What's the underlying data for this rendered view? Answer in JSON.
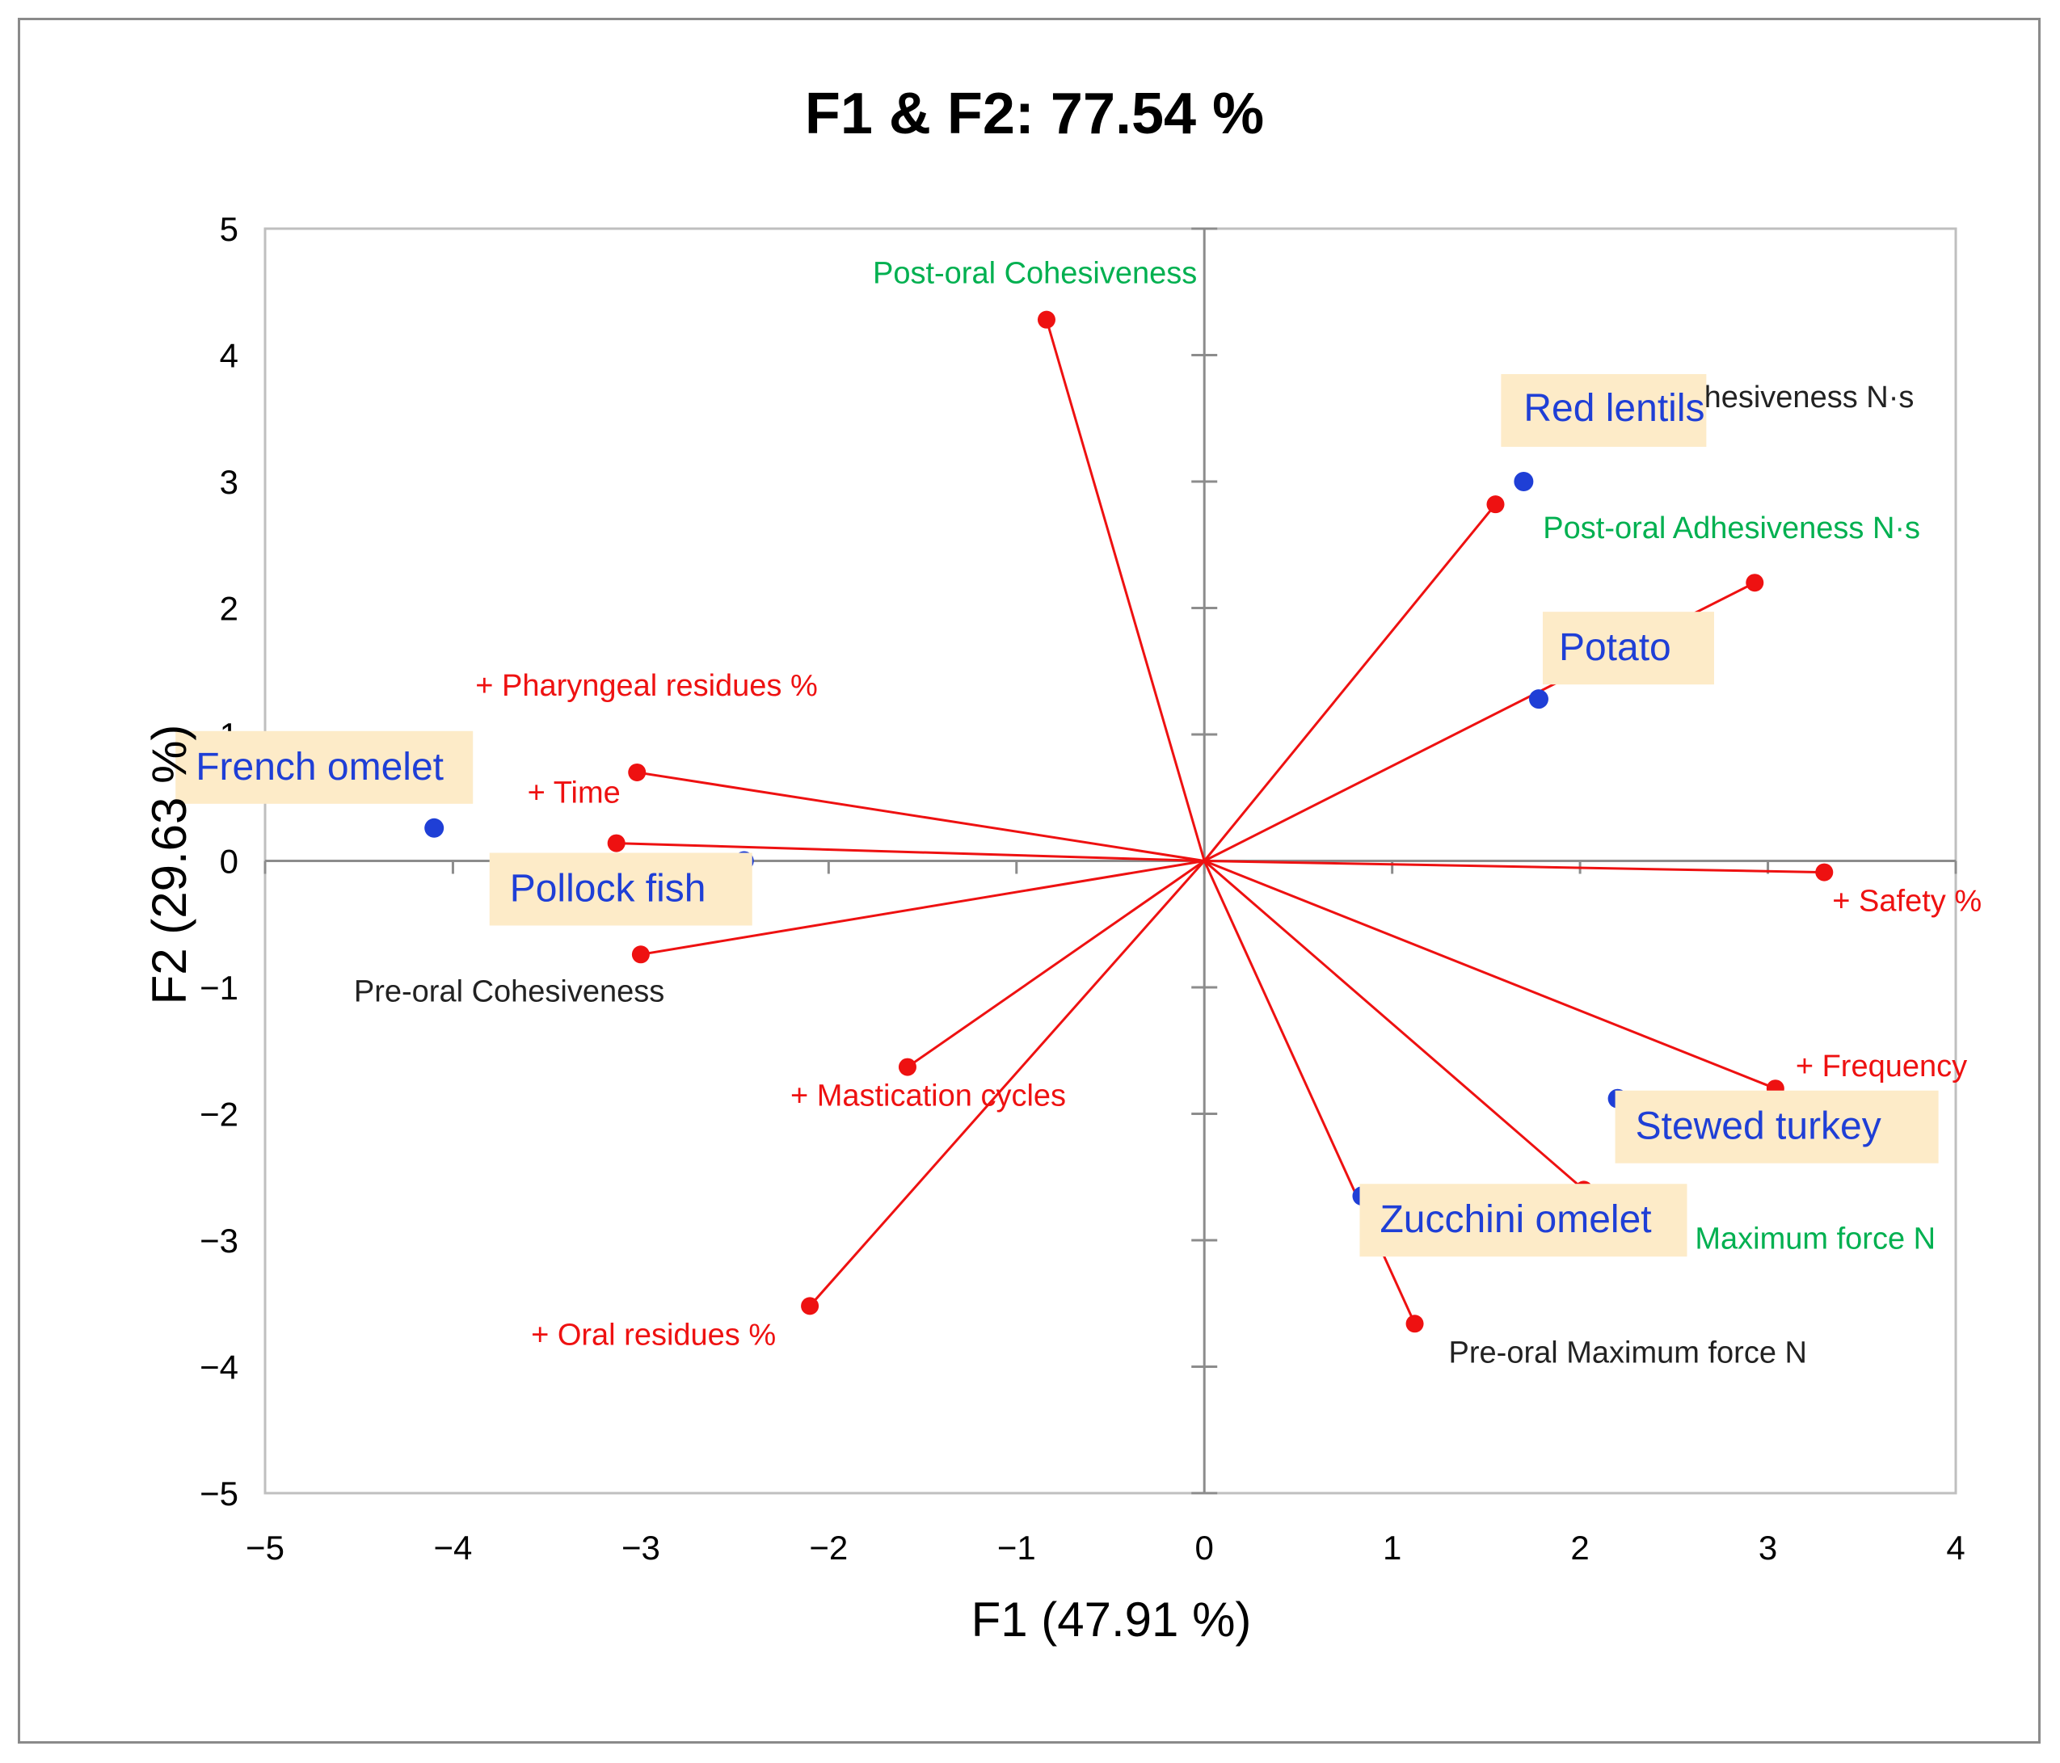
{
  "chart_data": {
    "type": "scatter",
    "title": "F1 & F2: 77.54 %",
    "xlabel": "F1 (47.91 %)",
    "ylabel": "F2 (29.63 %)",
    "xlim": [
      -5,
      4
    ],
    "ylim": [
      -5,
      5
    ],
    "xticks": [
      "−5",
      "−4",
      "−3",
      "−2",
      "−1",
      "0",
      "1",
      "2",
      "3",
      "4"
    ],
    "yticks": [
      "5",
      "4",
      "3",
      "2",
      "1",
      "0",
      "−1",
      "−2",
      "−3",
      "−4",
      "−5"
    ],
    "grid": false,
    "colors": {
      "vector": "#ee1111",
      "observation": "#1f3fd6",
      "label_red": "#ee1111",
      "label_green": "#00b050",
      "label_black": "#222222",
      "label_box": "#fdebc8",
      "axis": "#8c8c8c"
    },
    "variables": [
      {
        "name": "Post-oral Cohesiveness",
        "x": -0.84,
        "y": 4.28,
        "color": "green"
      },
      {
        "name": "Pre-oral Adhesiveness N·s",
        "x": 1.55,
        "y": 2.82,
        "color": "black"
      },
      {
        "name": "Post-oral Adhesiveness N·s",
        "x": 2.93,
        "y": 2.2,
        "color": "green"
      },
      {
        "name": "+ Pharyngeal residues %",
        "x": -3.02,
        "y": 0.7,
        "color": "red"
      },
      {
        "name": "+ Time",
        "x": -3.13,
        "y": 0.14,
        "color": "red"
      },
      {
        "name": "Pre-oral Cohesiveness",
        "x": -3.0,
        "y": -0.74,
        "color": "black"
      },
      {
        "name": "+ Safety %",
        "x": 3.3,
        "y": -0.09,
        "color": "red"
      },
      {
        "name": "+ Mastication cycles",
        "x": -1.58,
        "y": -1.63,
        "color": "red"
      },
      {
        "name": "+ Frequency",
        "x": 3.04,
        "y": -1.8,
        "color": "red"
      },
      {
        "name": "+ Oral residues %",
        "x": -2.1,
        "y": -3.52,
        "color": "red"
      },
      {
        "name": "Post-oral Maximum force N",
        "x": 2.02,
        "y": -2.6,
        "color": "green"
      },
      {
        "name": "Pre-oral Maximum force N",
        "x": 1.12,
        "y": -3.66,
        "color": "black"
      }
    ],
    "observations": [
      {
        "name": "Red lentils",
        "x": 1.7,
        "y": 3.0
      },
      {
        "name": "Potato",
        "x": 1.78,
        "y": 1.28
      },
      {
        "name": "French omelet",
        "x": -4.1,
        "y": 0.26
      },
      {
        "name": "Pollock fish",
        "x": -2.45,
        "y": 0.0
      },
      {
        "name": "Stewed turkey",
        "x": 2.2,
        "y": -1.88
      },
      {
        "name": "Zucchini omelet",
        "x": 0.84,
        "y": -2.65
      }
    ]
  }
}
